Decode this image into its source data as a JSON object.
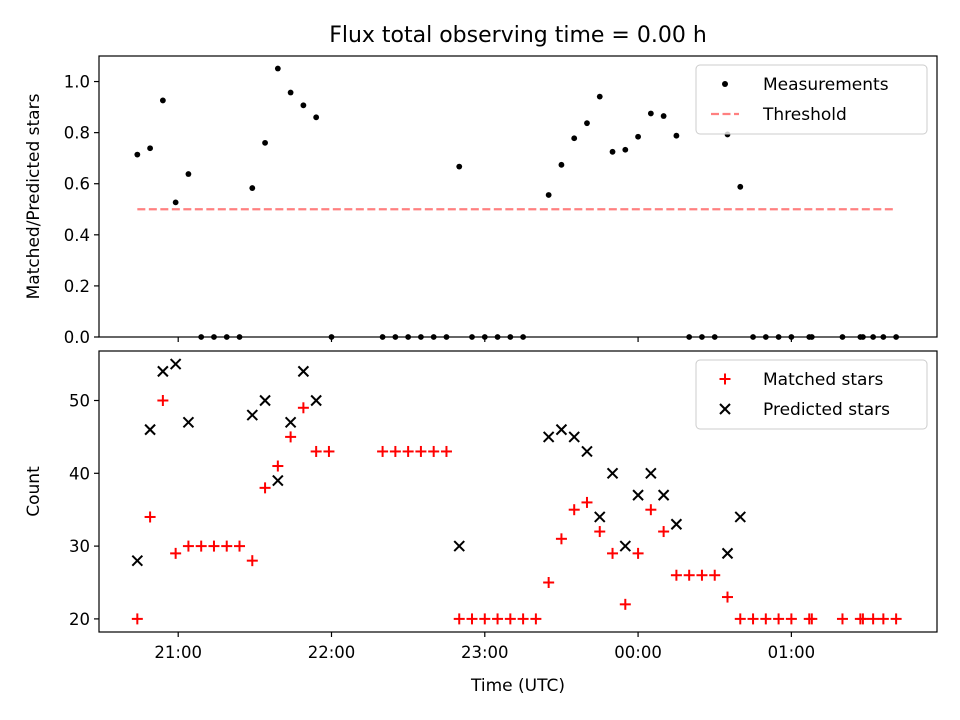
{
  "figure": {
    "title": "Flux total observing time = 0.00 h"
  },
  "colors": {
    "measurement": "#000000",
    "threshold": "#ff8080",
    "matched": "#ff0000",
    "predicted": "#000000"
  },
  "chart_data": [
    {
      "type": "scatter",
      "ylabel": "Matched/Predicted stars",
      "xlabel": "",
      "xlim": [
        "20:29",
        "01:57"
      ],
      "ylim": [
        0,
        1.1
      ],
      "yticks": [
        "0.0",
        "0.2",
        "0.4",
        "0.6",
        "0.8",
        "1.0"
      ],
      "xticks": [
        "21:00",
        "22:00",
        "23:00",
        "00:00",
        "01:00"
      ],
      "xtick_labels_shown": false,
      "legend": {
        "placement": "top-right",
        "entries": [
          "Measurements",
          "Threshold"
        ]
      },
      "series": [
        {
          "name": "Measurements",
          "marker": "dot",
          "points": [
            [
              "20:44",
              0.714
            ],
            [
              "20:49",
              0.739
            ],
            [
              "20:54",
              0.926
            ],
            [
              "20:59",
              0.527
            ],
            [
              "21:04",
              0.638
            ],
            [
              "21:09",
              0.0
            ],
            [
              "21:14",
              0.0
            ],
            [
              "21:19",
              0.0
            ],
            [
              "21:24",
              0.0
            ],
            [
              "21:29",
              0.583
            ],
            [
              "21:34",
              0.76
            ],
            [
              "21:39",
              1.051
            ],
            [
              "21:44",
              0.957
            ],
            [
              "21:49",
              0.907
            ],
            [
              "21:54",
              0.86
            ],
            [
              "22:00",
              0.0
            ],
            [
              "22:20",
              0.0
            ],
            [
              "22:25",
              0.0
            ],
            [
              "22:30",
              0.0
            ],
            [
              "22:35",
              0.0
            ],
            [
              "22:40",
              0.0
            ],
            [
              "22:45",
              0.0
            ],
            [
              "22:50",
              0.667
            ],
            [
              "22:55",
              0.0
            ],
            [
              "23:00",
              0.0
            ],
            [
              "23:05",
              0.0
            ],
            [
              "23:10",
              0.0
            ],
            [
              "23:15",
              0.0
            ],
            [
              "23:25",
              0.556
            ],
            [
              "23:30",
              0.674
            ],
            [
              "23:35",
              0.778
            ],
            [
              "23:40",
              0.837
            ],
            [
              "23:45",
              0.941
            ],
            [
              "23:50",
              0.725
            ],
            [
              "23:55",
              0.733
            ],
            [
              "00:00",
              0.784
            ],
            [
              "00:05",
              0.875
            ],
            [
              "00:10",
              0.865
            ],
            [
              "00:15",
              0.788
            ],
            [
              "00:20",
              0.0
            ],
            [
              "00:25",
              0.0
            ],
            [
              "00:30",
              0.0
            ],
            [
              "00:35",
              0.793
            ],
            [
              "00:40",
              0.588
            ],
            [
              "00:45",
              0.0
            ],
            [
              "00:50",
              0.0
            ],
            [
              "00:55",
              0.0
            ],
            [
              "01:00",
              0.0
            ],
            [
              "01:07",
              0.0
            ],
            [
              "01:08",
              0.0
            ],
            [
              "01:20",
              0.0
            ],
            [
              "01:27",
              0.0
            ],
            [
              "01:28",
              0.0
            ],
            [
              "01:32",
              0.0
            ],
            [
              "01:36",
              0.0
            ],
            [
              "01:41",
              0.0
            ]
          ]
        },
        {
          "name": "Threshold",
          "style": "dashed",
          "points": [
            [
              "20:44",
              0.5
            ],
            [
              "01:41",
              0.5
            ]
          ]
        }
      ]
    },
    {
      "type": "scatter",
      "ylabel": "Count",
      "xlabel": "Time (UTC)",
      "xlim": [
        "20:29",
        "01:57"
      ],
      "ylim": [
        18.2,
        56.8
      ],
      "yticks": [
        "20",
        "30",
        "40",
        "50"
      ],
      "xticks": [
        "21:00",
        "22:00",
        "23:00",
        "00:00",
        "01:00"
      ],
      "legend": {
        "placement": "top-right",
        "entries": [
          "Matched stars",
          "Predicted stars"
        ]
      },
      "series": [
        {
          "name": "Matched stars",
          "marker": "plus",
          "points": [
            [
              "20:44",
              20
            ],
            [
              "20:49",
              34
            ],
            [
              "20:54",
              50
            ],
            [
              "20:59",
              29
            ],
            [
              "21:04",
              30
            ],
            [
              "21:09",
              30
            ],
            [
              "21:14",
              30
            ],
            [
              "21:19",
              30
            ],
            [
              "21:24",
              30
            ],
            [
              "21:29",
              28
            ],
            [
              "21:34",
              38
            ],
            [
              "21:39",
              41
            ],
            [
              "21:44",
              45
            ],
            [
              "21:49",
              49
            ],
            [
              "21:54",
              43
            ],
            [
              "21:59",
              43
            ],
            [
              "22:20",
              43
            ],
            [
              "22:25",
              43
            ],
            [
              "22:30",
              43
            ],
            [
              "22:35",
              43
            ],
            [
              "22:40",
              43
            ],
            [
              "22:45",
              43
            ],
            [
              "22:50",
              20
            ],
            [
              "22:55",
              20
            ],
            [
              "23:00",
              20
            ],
            [
              "23:05",
              20
            ],
            [
              "23:10",
              20
            ],
            [
              "23:15",
              20
            ],
            [
              "23:20",
              20
            ],
            [
              "23:25",
              25
            ],
            [
              "23:30",
              31
            ],
            [
              "23:35",
              35
            ],
            [
              "23:40",
              36
            ],
            [
              "23:45",
              32
            ],
            [
              "23:50",
              29
            ],
            [
              "23:55",
              22
            ],
            [
              "00:00",
              29
            ],
            [
              "00:05",
              35
            ],
            [
              "00:10",
              32
            ],
            [
              "00:15",
              26
            ],
            [
              "00:20",
              26
            ],
            [
              "00:25",
              26
            ],
            [
              "00:30",
              26
            ],
            [
              "00:35",
              23
            ],
            [
              "00:40",
              20
            ],
            [
              "00:45",
              20
            ],
            [
              "00:50",
              20
            ],
            [
              "00:55",
              20
            ],
            [
              "01:00",
              20
            ],
            [
              "01:07",
              20
            ],
            [
              "01:08",
              20
            ],
            [
              "01:20",
              20
            ],
            [
              "01:27",
              20
            ],
            [
              "01:28",
              20
            ],
            [
              "01:32",
              20
            ],
            [
              "01:36",
              20
            ],
            [
              "01:41",
              20
            ]
          ]
        },
        {
          "name": "Predicted stars",
          "marker": "x",
          "points": [
            [
              "20:44",
              28
            ],
            [
              "20:49",
              46
            ],
            [
              "20:54",
              54
            ],
            [
              "20:59",
              55
            ],
            [
              "21:04",
              47
            ],
            [
              "21:29",
              48
            ],
            [
              "21:34",
              50
            ],
            [
              "21:39",
              39
            ],
            [
              "21:44",
              47
            ],
            [
              "21:49",
              54
            ],
            [
              "21:54",
              50
            ],
            [
              "22:50",
              30
            ],
            [
              "23:25",
              45
            ],
            [
              "23:30",
              46
            ],
            [
              "23:35",
              45
            ],
            [
              "23:40",
              43
            ],
            [
              "23:45",
              34
            ],
            [
              "23:50",
              40
            ],
            [
              "23:55",
              30
            ],
            [
              "00:00",
              37
            ],
            [
              "00:05",
              40
            ],
            [
              "00:10",
              37
            ],
            [
              "00:15",
              33
            ],
            [
              "00:35",
              29
            ],
            [
              "00:40",
              34
            ]
          ]
        }
      ]
    }
  ]
}
